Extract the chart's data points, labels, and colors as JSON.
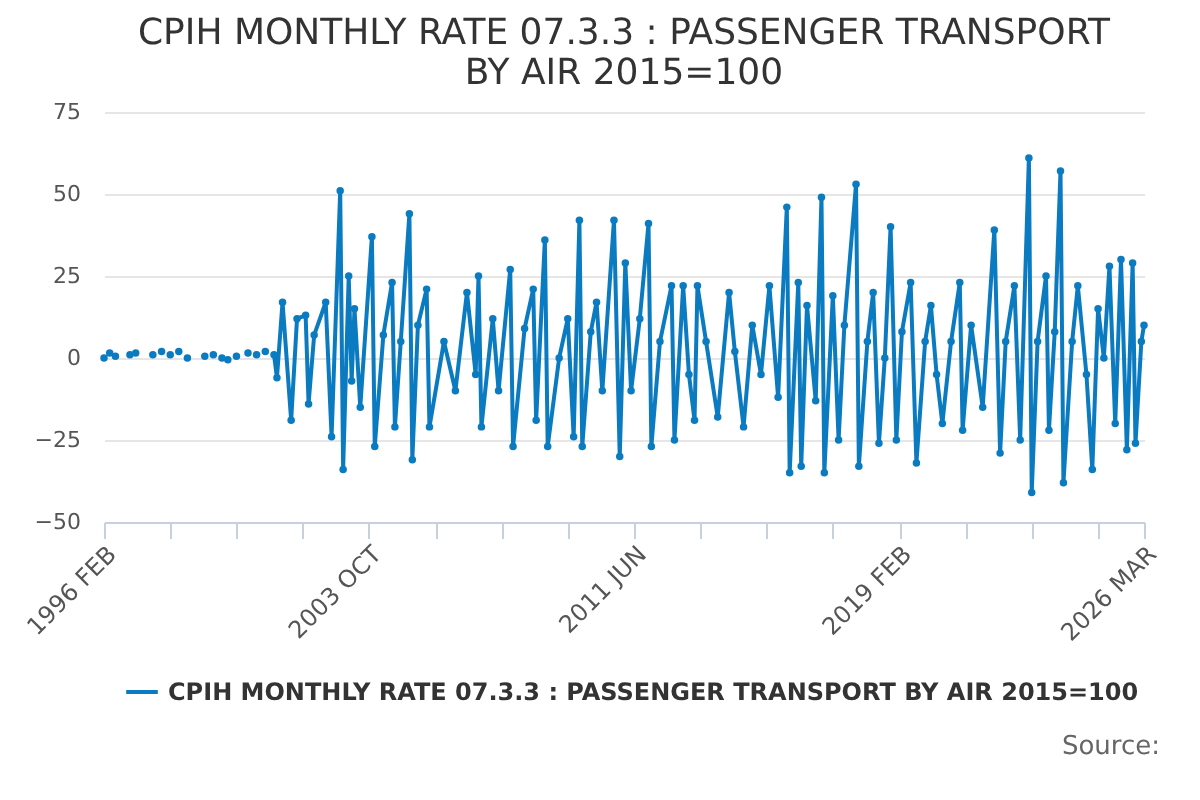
{
  "chart_data": {
    "type": "line",
    "title": "CPIH MONTHLY RATE 07.3.3 : PASSENGER TRANSPORT BY AIR 2015=100",
    "x": [
      "1996-02",
      "1996-03",
      "1996-04",
      "1996-05",
      "1996-06",
      "1996-07",
      "1996-11",
      "1996-12",
      "1997-01",
      "1997-02",
      "1997-07",
      "1997-08",
      "1997-10",
      "1997-11",
      "1998-01",
      "1998-02",
      "1998-04",
      "1998-05",
      "1998-07",
      "1998-08",
      "1999-01",
      "1999-02",
      "1999-04",
      "1999-05",
      "1999-07",
      "1999-08",
      "1999-09",
      "1999-10",
      "1999-12",
      "2000-01",
      "2000-04",
      "2000-05",
      "2000-07",
      "2000-08",
      "2000-10",
      "2000-11",
      "2001-01",
      "2001-02",
      "2001-04",
      "2001-07",
      "2001-09",
      "2001-12",
      "2002-01",
      "2002-03",
      "2002-07",
      "2002-09",
      "2002-12",
      "2003-01",
      "2003-03",
      "2003-04",
      "2003-05",
      "2003-07",
      "2003-11",
      "2003-12",
      "2004-03",
      "2004-06",
      "2004-07",
      "2004-09",
      "2004-12",
      "2005-01",
      "2005-03",
      "2005-06",
      "2005-07",
      "2005-12",
      "2006-04",
      "2006-08",
      "2006-11",
      "2006-12",
      "2007-01",
      "2007-05",
      "2007-07",
      "2007-11",
      "2007-12",
      "2008-04",
      "2008-07",
      "2008-08",
      "2008-11",
      "2008-12",
      "2009-04",
      "2009-07",
      "2009-09",
      "2009-11",
      "2009-12",
      "2010-03",
      "2010-05",
      "2010-07",
      "2010-11",
      "2011-01",
      "2011-03",
      "2011-05",
      "2011-08",
      "2011-11",
      "2011-12",
      "2012-03",
      "2012-07",
      "2012-08",
      "2012-11",
      "2013-01",
      "2013-03",
      "2013-04",
      "2013-07",
      "2013-11",
      "2014-03",
      "2014-05",
      "2014-08",
      "2014-11",
      "2015-02",
      "2015-05",
      "2015-08",
      "2015-11",
      "2015-12",
      "2016-03",
      "2016-04",
      "2016-06",
      "2016-09",
      "2016-11",
      "2016-12",
      "2017-03",
      "2017-05",
      "2017-07",
      "2017-11",
      "2017-12",
      "2018-03",
      "2018-05",
      "2018-07",
      "2018-09",
      "2018-11",
      "2019-01",
      "2019-03",
      "2019-06",
      "2019-08",
      "2019-11",
      "2020-01",
      "2020-03",
      "2020-05",
      "2020-08",
      "2020-11",
      "2020-12",
      "2021-03",
      "2021-07",
      "2021-11",
      "2022-01",
      "2022-03",
      "2022-06",
      "2022-08",
      "2022-11",
      "2022-12",
      "2023-02",
      "2023-05",
      "2023-06",
      "2023-08",
      "2023-10",
      "2023-11",
      "2024-02",
      "2024-04",
      "2024-07",
      "2024-09",
      "2024-11",
      "2025-01",
      "2025-03",
      "2025-05",
      "2025-07",
      "2025-09",
      "2025-11",
      "2025-12",
      "2026-02",
      "2026-03"
    ],
    "series": [
      {
        "name": "CPIH MONTHLY RATE 07.3.3 : PASSENGER TRANSPORT BY AIR 2015=100",
        "color": "#0b7bc1",
        "values": [
          0,
          null,
          1.5,
          null,
          0.5,
          null,
          1,
          null,
          1.5,
          null,
          1,
          null,
          2,
          null,
          1,
          null,
          2,
          null,
          0,
          null,
          0.5,
          null,
          1,
          null,
          0,
          null,
          -0.5,
          null,
          0.5,
          null,
          1.5,
          null,
          1,
          null,
          2,
          null,
          1,
          -6,
          17,
          -19,
          12,
          13,
          -14,
          7,
          17,
          -24,
          51,
          -34,
          25,
          -7,
          15,
          -15,
          37,
          -27,
          7,
          23,
          -21,
          5,
          44,
          -31,
          10,
          21,
          -21,
          5,
          -10,
          20,
          -5,
          25,
          -21,
          12,
          -10,
          27,
          -27,
          9,
          21,
          -19,
          36,
          -27,
          0,
          12,
          -24,
          42,
          -27,
          8,
          17,
          -10,
          42,
          -30,
          29,
          -10,
          12,
          41,
          -27,
          5,
          22,
          -25,
          22,
          -5,
          -19,
          22,
          5,
          -18,
          20,
          2,
          -21,
          10,
          -5,
          22,
          -12,
          46,
          -35,
          23,
          -33,
          16,
          -13,
          49,
          -35,
          19,
          -25,
          10,
          53,
          -33,
          5,
          20,
          -26,
          0,
          40,
          -25,
          8,
          23,
          -32,
          5,
          16,
          -5,
          -20,
          5,
          23,
          -22,
          10,
          -15,
          39,
          -29,
          5,
          22,
          -25,
          61,
          -41,
          5,
          25,
          -22,
          8,
          57,
          -38,
          5,
          22,
          -5,
          -34,
          15,
          0,
          28,
          -20,
          30,
          -28,
          29,
          -26,
          5,
          10
        ]
      }
    ],
    "xlim": [
      "1996-02",
      "2026-03"
    ],
    "xticks": [
      {
        "value": "1996-02",
        "label": "1996 FEB"
      },
      {
        "value": "1998-01",
        "label": null
      },
      {
        "value": "1999-12",
        "label": null
      },
      {
        "value": "2001-11",
        "label": null
      },
      {
        "value": "2003-10",
        "label": "2003 OCT"
      },
      {
        "value": "2005-09",
        "label": null
      },
      {
        "value": "2007-08",
        "label": null
      },
      {
        "value": "2009-07",
        "label": null
      },
      {
        "value": "2011-06",
        "label": "2011 JUN"
      },
      {
        "value": "2013-05",
        "label": null
      },
      {
        "value": "2015-04",
        "label": null
      },
      {
        "value": "2017-03",
        "label": null
      },
      {
        "value": "2019-02",
        "label": "2019 FEB"
      },
      {
        "value": "2021-01",
        "label": null
      },
      {
        "value": "2022-12",
        "label": null
      },
      {
        "value": "2024-11",
        "label": null
      },
      {
        "value": "2026-03",
        "label": "2026 MAR"
      }
    ],
    "ylim": [
      -50,
      75
    ],
    "yticks": [
      -50,
      -25,
      0,
      25,
      50,
      75
    ],
    "grid": "y",
    "legend": "bottom",
    "marker": "circle",
    "line_style": "solid",
    "annotations": [
      "Source:"
    ]
  }
}
